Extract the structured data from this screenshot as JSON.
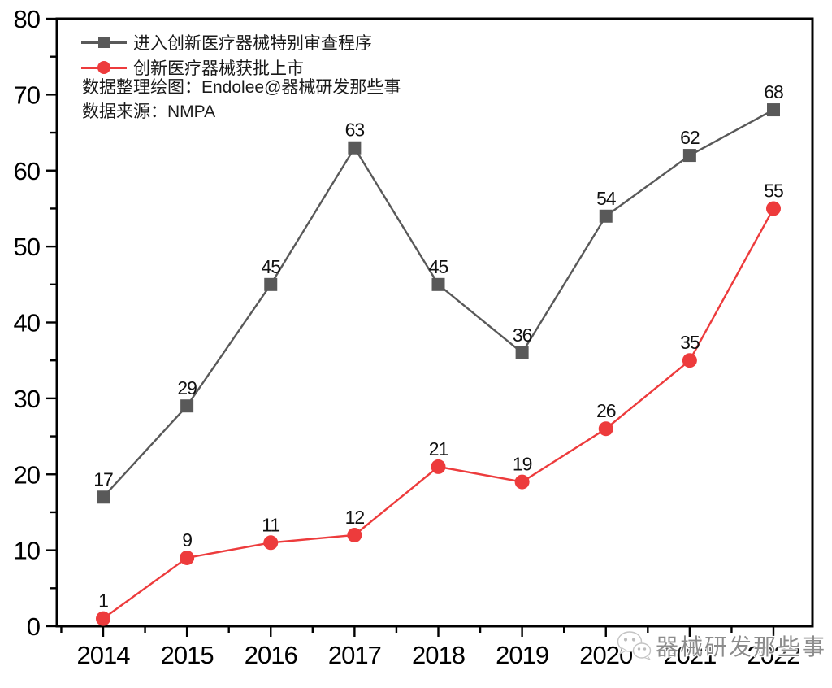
{
  "chart_data": {
    "type": "line",
    "x": [
      "2014",
      "2015",
      "2016",
      "2017",
      "2018",
      "2019",
      "2020",
      "2021",
      "2022"
    ],
    "series": [
      {
        "name": "进入创新医疗器械特别审查程序",
        "marker": "square",
        "color": "#595959",
        "values": [
          17,
          29,
          45,
          63,
          45,
          36,
          54,
          62,
          68
        ]
      },
      {
        "name": "创新医疗器械获批上市",
        "marker": "circle",
        "color": "#ED3B3C",
        "values": [
          1,
          9,
          11,
          12,
          21,
          19,
          26,
          35,
          55
        ]
      }
    ],
    "title": "",
    "xlabel": "",
    "ylabel": "",
    "ylim": [
      0,
      80
    ],
    "y_ticks": [
      0,
      10,
      20,
      30,
      40,
      50,
      60,
      70,
      80
    ],
    "y_minor_step": 5,
    "grid": false,
    "legend_position": "top-left-inside",
    "frame": "full-box",
    "data_labels": true
  },
  "annotations": {
    "credit": "数据整理绘图：Endolee@器械研发那些事",
    "source": "数据来源：NMPA"
  },
  "watermark": {
    "icon": "wechat-icon",
    "text": "器械研发那些事"
  },
  "colors": {
    "series_review": "#595959",
    "series_approved": "#ED3B3C",
    "axis": "#000000",
    "data_label": "#111111",
    "watermark_text": "#8c8c8c",
    "background": "#ffffff"
  }
}
